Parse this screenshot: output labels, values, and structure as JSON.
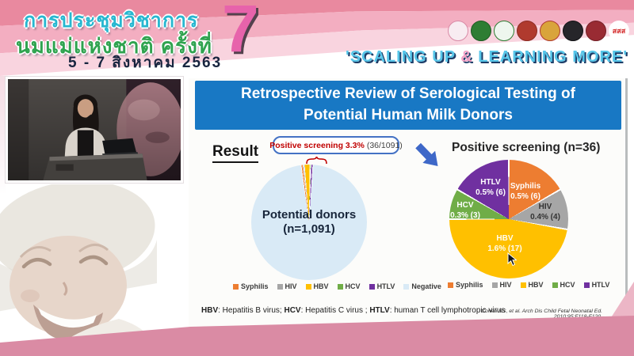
{
  "banner": {
    "title_line1": "การประชุมวิชาการ",
    "title_line2": "นมแม่แห่งชาติ ครั้งที่",
    "dates": "5 - 7 สิงหาคม 2563",
    "edition_number": "7",
    "slogan_prefix": "'SCALING UP ",
    "slogan_amp": "&",
    "slogan_suffix": " LEARNING MORE'",
    "logos": [
      {
        "color": "#f8ecf1",
        "border": "#d98aa6"
      },
      {
        "color": "#2e7d33",
        "border": "#1d5a22"
      },
      {
        "color": "#eef6ee",
        "border": "#2e7d33"
      },
      {
        "color": "#b03a2e",
        "border": "#8c2b22"
      },
      {
        "color": "#d9a43b",
        "border": "#b03a2e"
      },
      {
        "color": "#26262a",
        "border": "#111114"
      },
      {
        "color": "#992b33",
        "border": "#731f26"
      },
      {
        "color": "#ffffff",
        "border": "#ffffff",
        "text": "สสส",
        "text_color": "#d42a2a"
      }
    ]
  },
  "slide": {
    "title_line1": "Retrospective Review of Serological Testing of",
    "title_line2": "Potential Human Milk Donors",
    "result_label": "Result",
    "callout": {
      "highlight": "Positive screening 3.3%",
      "detail": "(36/1091)"
    },
    "footnote": {
      "p1b": "HBV",
      "p1t": ": Hepatitis B virus; ",
      "p2b": "HCV",
      "p2t": ": Hepatitis C virus ; ",
      "p3b": "HTLV",
      "p3t": ": human T cell lymphotropic virus"
    },
    "citation": "Cohen RS, et al. Arch Dis Child Fetal Neonatal Ed. 2010;95:F118-F120."
  },
  "colors": {
    "title_bar_blue": "#1878c4",
    "callout_border_blue": "#4472c4",
    "highlight_red": "#c00000",
    "arrow_blue": "#3e68c8",
    "band_pink_light": "#ecb6c6",
    "band_pink_dark": "#da8ba4"
  },
  "chart_data": [
    {
      "type": "pie",
      "title": "Potential donors (n=1,091)",
      "center_label_line1": "Potential donors",
      "center_label_line2": "(n=1,091)",
      "total": 1091,
      "start_angle_deg": -8,
      "gap_deg": 0.8,
      "slices": [
        {
          "name": "Syphilis",
          "count": 6,
          "color": "#ED7D31"
        },
        {
          "name": "HIV",
          "count": 4,
          "color": "#A6A6A6"
        },
        {
          "name": "HBV",
          "count": 17,
          "color": "#FFC000"
        },
        {
          "name": "HCV",
          "count": 3,
          "color": "#70AD47"
        },
        {
          "name": "HTLV",
          "count": 6,
          "color": "#7030A0"
        },
        {
          "name": "Negative",
          "count": 1055,
          "color": "#D9EAF6"
        }
      ],
      "legend": [
        "Syphilis",
        "HIV",
        "HBV",
        "HCV",
        "HTLV",
        "Negative"
      ],
      "annotation": "Positive screening 3.3% (36/1091)"
    },
    {
      "type": "pie",
      "title": "Positive screening (n=36)",
      "total": 36,
      "start_angle_deg": 0,
      "gap_deg": 1.6,
      "slices": [
        {
          "name": "Syphilis",
          "label": "0.5% (6)",
          "count": 6,
          "color": "#ED7D31",
          "text_color": "#ffffff"
        },
        {
          "name": "HIV",
          "label": "0.4% (4)",
          "count": 4,
          "color": "#A6A6A6",
          "text_color": "#333333"
        },
        {
          "name": "HBV",
          "label": "1.6% (17)",
          "count": 17,
          "color": "#FFC000",
          "text_color": "#fffdf2"
        },
        {
          "name": "HCV",
          "label": "0.3% (3)",
          "count": 3,
          "color": "#70AD47",
          "text_color": "#ffffff"
        },
        {
          "name": "HTLV",
          "label": "0.5% (6)",
          "count": 6,
          "color": "#7030A0",
          "text_color": "#ffffff"
        }
      ],
      "legend": [
        "Syphilis",
        "HIV",
        "HBV",
        "HCV",
        "HTLV"
      ]
    }
  ]
}
